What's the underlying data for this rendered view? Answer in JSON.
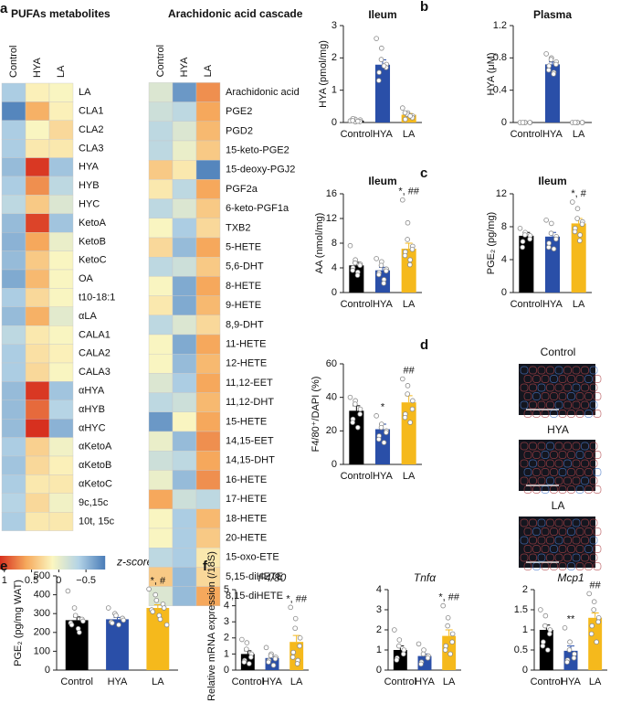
{
  "chart_data": [
    {
      "type": "heatmap",
      "panel": "a",
      "title": "PUFAs metabolites",
      "columns": [
        "Control",
        "HYA",
        "LA"
      ],
      "column_colors": [
        "#000000",
        "#2a4fa8",
        "#f0a818"
      ],
      "rows": [
        "LA",
        "CLA1",
        "CLA2",
        "CLA3",
        "HYA",
        "HYB",
        "HYC",
        "KetoA",
        "KetoB",
        "KetoC",
        "OA",
        "t10-18:1",
        "αLA",
        "CALA1",
        "CALA2",
        "CALA3",
        "αHYA",
        "αHYB",
        "αHYC",
        "αKetoA",
        "αKetoB",
        "αKetoC",
        "9c,15c",
        "10t, 15c"
      ],
      "values": [
        [
          -0.4,
          0.15,
          0.1
        ],
        [
          -0.8,
          0.55,
          0.15
        ],
        [
          -0.4,
          0.1,
          0.3
        ],
        [
          -0.4,
          0.2,
          0.2
        ],
        [
          -0.5,
          1.05,
          -0.45
        ],
        [
          -0.4,
          0.7,
          -0.3
        ],
        [
          -0.3,
          0.4,
          -0.1
        ],
        [
          -0.5,
          1.0,
          -0.45
        ],
        [
          -0.55,
          0.6,
          0.0
        ],
        [
          -0.5,
          0.4,
          0.1
        ],
        [
          -0.6,
          0.5,
          0.1
        ],
        [
          -0.4,
          0.3,
          0.1
        ],
        [
          -0.5,
          0.55,
          -0.05
        ],
        [
          -0.3,
          0.2,
          0.1
        ],
        [
          -0.4,
          0.25,
          0.15
        ],
        [
          -0.4,
          0.3,
          0.1
        ],
        [
          -0.5,
          1.05,
          -0.45
        ],
        [
          -0.5,
          0.85,
          -0.35
        ],
        [
          -0.5,
          1.1,
          -0.55
        ],
        [
          -0.4,
          0.35,
          0.05
        ],
        [
          -0.45,
          0.3,
          0.15
        ],
        [
          -0.4,
          0.2,
          0.2
        ],
        [
          -0.35,
          0.3,
          0.05
        ],
        [
          -0.4,
          0.2,
          0.2
        ]
      ],
      "colorbar": {
        "label": "z-score",
        "lim": [
          1.08,
          -0.85
        ],
        "ticks": [
          1,
          0.5,
          0,
          {
            "value": -0.5,
            "label": "−0.5"
          }
        ],
        "colors": [
          "#d7301f",
          "#f6a95c",
          "#fbf6c0",
          "#b3d3e6",
          "#4a7db8"
        ]
      }
    },
    {
      "type": "heatmap",
      "title": "Arachidonic acid cascade",
      "columns": [
        "Control",
        "HYA",
        "LA"
      ],
      "column_colors": [
        "#000000",
        "#2a4fa8",
        "#f0a818"
      ],
      "rows": [
        "Arachidonic acid",
        "PGE2",
        "PGD2",
        "15-keto-PGE2",
        "15-deoxy-PGJ2",
        "PGF2a",
        "6-keto-PGF1a",
        "TXB2",
        "5-HETE",
        "5,6-DHT",
        "8-HETE",
        "9-HETE",
        "8,9-DHT",
        "11-HETE",
        "12-HETE",
        "11,12-EET",
        "11,12-DHT",
        "15-HETE",
        "14,15-EET",
        "14,15-DHT",
        "16-HETE",
        "17-HETE",
        "18-HETE",
        "20-HETE",
        "15-oxo-ETE",
        "5,15-diHETE",
        "8,15-diHETE"
      ],
      "values": [
        [
          -0.1,
          -0.7,
          0.7
        ],
        [
          -0.2,
          -0.3,
          0.6
        ],
        [
          -0.3,
          -0.1,
          0.5
        ],
        [
          -0.3,
          0.0,
          0.4
        ],
        [
          0.4,
          0.2,
          -0.8
        ],
        [
          0.2,
          -0.3,
          0.6
        ],
        [
          -0.3,
          -0.1,
          0.4
        ],
        [
          0.1,
          -0.4,
          0.3
        ],
        [
          0.3,
          -0.5,
          0.6
        ],
        [
          -0.3,
          -0.2,
          0.4
        ],
        [
          0.1,
          -0.6,
          0.6
        ],
        [
          0.2,
          -0.6,
          0.5
        ],
        [
          -0.3,
          -0.1,
          0.3
        ],
        [
          0.1,
          -0.6,
          0.6
        ],
        [
          0.1,
          -0.5,
          0.5
        ],
        [
          -0.1,
          -0.4,
          0.6
        ],
        [
          -0.3,
          -0.2,
          0.5
        ],
        [
          -0.7,
          0.1,
          0.6
        ],
        [
          0.0,
          -0.5,
          0.7
        ],
        [
          -0.2,
          -0.3,
          0.6
        ],
        [
          0.0,
          -0.5,
          0.7
        ],
        [
          0.6,
          -0.2,
          -0.3
        ],
        [
          0.1,
          -0.4,
          0.5
        ],
        [
          0.1,
          -0.4,
          0.4
        ],
        [
          -0.3,
          -0.4,
          0.2
        ],
        [
          0.4,
          -0.5,
          0.3
        ],
        [
          -0.1,
          -0.5,
          0.6
        ]
      ]
    },
    {
      "type": "bar",
      "panel": "b",
      "title": "Ileum",
      "ylabel": "HYA (pmol/mg)",
      "categories": [
        "Control",
        "HYA",
        "LA"
      ],
      "colors": [
        "#000000",
        "#2a4fa8",
        "#f5b91c"
      ],
      "values": [
        0.06,
        1.79,
        0.24
      ],
      "errors": [
        0.02,
        0.15,
        0.04
      ],
      "ylim": [
        0,
        3
      ],
      "yticks": [
        0,
        1,
        2,
        3
      ],
      "points": [
        [
          0.05,
          0.02,
          0.1,
          0.08,
          0.03,
          0.12,
          0.06,
          0.04
        ],
        [
          2.6,
          2.3,
          1.95,
          1.8,
          1.7,
          1.55,
          1.3,
          1.75
        ],
        [
          0.45,
          0.3,
          0.25,
          0.2,
          0.15,
          0.1,
          0.3,
          0.2
        ]
      ]
    },
    {
      "type": "bar",
      "title": "Plasma",
      "ylabel": "HYA (μM)",
      "categories": [
        "Control",
        "HYA",
        "LA"
      ],
      "colors": [
        "#000000",
        "#2a4fa8",
        "#f5b91c"
      ],
      "values": [
        0,
        0.72,
        0
      ],
      "errors": [
        0,
        0.03,
        0
      ],
      "ylim": [
        0,
        1.2
      ],
      "yticks": [
        0,
        0.4,
        0.8,
        1.2
      ],
      "points": [
        [
          0,
          0,
          0,
          0,
          0,
          0
        ],
        [
          0.85,
          0.8,
          0.78,
          0.75,
          0.72,
          0.7,
          0.65,
          0.62,
          0.6
        ],
        [
          0,
          0,
          0,
          0,
          0,
          0
        ]
      ]
    },
    {
      "type": "bar",
      "panel": "c",
      "title": "Ileum",
      "ylabel": "AA (nmol/mg)",
      "categories": [
        "Control",
        "HYA",
        "LA"
      ],
      "colors": [
        "#000000",
        "#2a4fa8",
        "#f5b91c"
      ],
      "values": [
        4.4,
        3.6,
        7.1
      ],
      "errors": [
        0.5,
        0.5,
        0.9
      ],
      "ylim": [
        0,
        16
      ],
      "yticks": [
        0,
        4,
        8,
        12,
        16
      ],
      "annotations": [
        null,
        null,
        "*, ##"
      ],
      "points": [
        [
          7.6,
          5.3,
          4.8,
          4.6,
          4.4,
          4.0,
          3.6,
          3.3,
          2.8
        ],
        [
          5.5,
          5.0,
          4.4,
          3.8,
          3.5,
          3.2,
          2.9,
          2.1,
          1.5
        ],
        [
          15,
          11.3,
          8.6,
          7.5,
          7.0,
          6.6,
          6.0,
          5.3,
          4.5
        ]
      ]
    },
    {
      "type": "bar",
      "title": "Ileum",
      "ylabel": "PGE₂ (pg/mg)",
      "categories": [
        "Control",
        "HYA",
        "LA"
      ],
      "colors": [
        "#000000",
        "#2a4fa8",
        "#f5b91c"
      ],
      "values": [
        6.9,
        6.8,
        8.4
      ],
      "errors": [
        0.4,
        0.5,
        0.6
      ],
      "ylim": [
        0,
        12
      ],
      "yticks": [
        0,
        4,
        8,
        12
      ],
      "annotations": [
        null,
        null,
        "*, #"
      ],
      "points": [
        [
          7.8,
          7.3,
          7.0,
          6.9,
          6.5,
          6.2,
          5.5
        ],
        [
          8.8,
          8.4,
          7.2,
          6.8,
          6.5,
          6.0,
          5.5,
          5.3
        ],
        [
          11,
          10.2,
          9.0,
          8.6,
          8.3,
          7.8,
          7.4,
          7.0,
          6.3
        ]
      ]
    },
    {
      "type": "bar",
      "panel": "d",
      "ylabel": "F4/80⁺/DAPI (%)",
      "categories": [
        "Control",
        "HYA",
        "LA"
      ],
      "colors": [
        "#000000",
        "#2a4fa8",
        "#f5b91c"
      ],
      "values": [
        32,
        21,
        37
      ],
      "errors": [
        3,
        3,
        4
      ],
      "ylim": [
        0,
        60
      ],
      "yticks": [
        0,
        20,
        40,
        60
      ],
      "annotations": [
        null,
        "*",
        "##"
      ],
      "images": [
        "Control",
        "HYA",
        "LA"
      ],
      "points": [
        [
          40,
          38,
          36,
          33,
          30,
          27,
          25,
          22
        ],
        [
          29,
          24,
          22,
          20,
          19,
          17,
          15,
          13
        ],
        [
          51,
          47,
          42,
          38,
          33,
          30,
          28,
          25
        ]
      ]
    },
    {
      "type": "bar",
      "panel": "e",
      "ylabel": "PGE₂ (pg/mg WAT)",
      "categories": [
        "Control",
        "HYA",
        "LA"
      ],
      "colors": [
        "#000000",
        "#2a4fa8",
        "#f5b91c"
      ],
      "values": [
        265,
        270,
        330
      ],
      "errors": [
        17,
        10,
        17
      ],
      "ylim": [
        0,
        500
      ],
      "yticks": [
        0,
        100,
        200,
        300,
        400,
        500
      ],
      "annotations": [
        null,
        null,
        "*, #"
      ],
      "points": [
        [
          420,
          330,
          290,
          270,
          260,
          250,
          240,
          220,
          200
        ],
        [
          330,
          300,
          290,
          275,
          265,
          255,
          250,
          240
        ],
        [
          430,
          400,
          370,
          350,
          330,
          320,
          310,
          290,
          270,
          240
        ]
      ]
    },
    {
      "type": "bar",
      "panel": "f",
      "title": "F4/80",
      "title_style": "italic",
      "ylabel": "Relative mRNA expression (/18S)",
      "categories": [
        "Control",
        "HYA",
        "LA"
      ],
      "colors": [
        "#000000",
        "#2a4fa8",
        "#f5b91c"
      ],
      "values": [
        1.0,
        0.75,
        1.75
      ],
      "errors": [
        0.2,
        0.1,
        0.4
      ],
      "ylim": [
        0,
        5
      ],
      "yticks": [
        0,
        1,
        2,
        3,
        4,
        5
      ],
      "annotations": [
        null,
        null,
        "*, ##"
      ],
      "points": [
        [
          1.9,
          1.7,
          1.3,
          1.0,
          0.8,
          0.6,
          0.5,
          0.4
        ],
        [
          1.4,
          1.0,
          0.9,
          0.8,
          0.7,
          0.6,
          0.5,
          0.3
        ],
        [
          3.9,
          3.2,
          2.6,
          2.0,
          1.5,
          1.1,
          0.8,
          0.6,
          0.4
        ]
      ]
    },
    {
      "type": "bar",
      "title": "Tnfα",
      "title_style": "italic",
      "categories": [
        "Control",
        "HYA",
        "LA"
      ],
      "colors": [
        "#000000",
        "#2a4fa8",
        "#f5b91c"
      ],
      "values": [
        1.0,
        0.7,
        1.7
      ],
      "errors": [
        0.2,
        0.1,
        0.3
      ],
      "ylim": [
        0,
        4
      ],
      "yticks": [
        0,
        1,
        2,
        3,
        4
      ],
      "annotations": [
        null,
        null,
        "*, ##"
      ],
      "points": [
        [
          2.0,
          1.5,
          1.2,
          1.0,
          0.8,
          0.6,
          0.5
        ],
        [
          1.3,
          1.0,
          0.8,
          0.7,
          0.6,
          0.4,
          0.3
        ],
        [
          3.2,
          2.6,
          2.2,
          1.8,
          1.4,
          1.2,
          1.0,
          0.8
        ]
      ]
    },
    {
      "type": "bar",
      "title": "Mcp1",
      "title_style": "italic",
      "categories": [
        "Control",
        "HYA",
        "LA"
      ],
      "colors": [
        "#000000",
        "#2a4fa8",
        "#f5b91c"
      ],
      "values": [
        1.0,
        0.48,
        1.3
      ],
      "errors": [
        0.12,
        0.12,
        0.12
      ],
      "ylim": [
        0,
        2
      ],
      "yticks": [
        0,
        0.5,
        1,
        1.5,
        2
      ],
      "annotations": [
        null,
        "**",
        "##"
      ],
      "points": [
        [
          1.5,
          1.35,
          1.1,
          1.0,
          0.9,
          0.7,
          0.6,
          0.5
        ],
        [
          1.05,
          0.7,
          0.5,
          0.4,
          0.3,
          0.25,
          0.2
        ],
        [
          1.9,
          1.7,
          1.5,
          1.3,
          1.2,
          1.1,
          0.9,
          0.7
        ]
      ]
    }
  ]
}
